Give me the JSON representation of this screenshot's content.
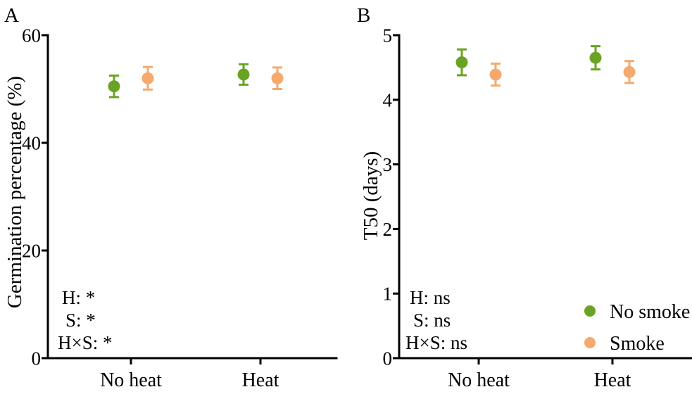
{
  "colors": {
    "no_smoke_green": "#6aa323",
    "smoke_orange": "#f4aa6e",
    "axis_black": "#000000"
  },
  "chart_data": [
    {
      "type": "scatter",
      "panel_label": "A",
      "ylabel": "Germination percentage (%)",
      "xlabel": "",
      "ylim": [
        0,
        60
      ],
      "yticks": [
        0,
        20,
        40,
        60
      ],
      "categories": [
        "No heat",
        "Heat"
      ],
      "series": [
        {
          "name": "No smoke",
          "color": "#6aa323",
          "values": [
            50.5,
            52.7
          ],
          "errors": [
            2.0,
            1.9
          ]
        },
        {
          "name": "Smoke",
          "color": "#f4aa6e",
          "values": [
            52.0,
            52.0
          ],
          "errors": [
            2.1,
            2.0
          ]
        }
      ],
      "annotations": [
        "H: *",
        "S: *",
        "H×S: *"
      ],
      "legend": null,
      "grid": false
    },
    {
      "type": "scatter",
      "panel_label": "B",
      "ylabel": "T50 (days)",
      "xlabel": "",
      "ylim": [
        0,
        5
      ],
      "yticks": [
        0,
        1,
        2,
        3,
        4,
        5
      ],
      "categories": [
        "No heat",
        "Heat"
      ],
      "series": [
        {
          "name": "No smoke",
          "color": "#6aa323",
          "values": [
            4.58,
            4.65
          ],
          "errors": [
            0.2,
            0.18
          ]
        },
        {
          "name": "Smoke",
          "color": "#f4aa6e",
          "values": [
            4.39,
            4.43
          ],
          "errors": [
            0.17,
            0.17
          ]
        }
      ],
      "annotations": [
        "H: ns",
        "S: ns",
        "H×S: ns"
      ],
      "legend": {
        "position": "bottom-right",
        "items": [
          {
            "label": "No smoke",
            "color": "#6aa323"
          },
          {
            "label": "Smoke",
            "color": "#f4aa6e"
          }
        ]
      },
      "grid": false
    }
  ]
}
